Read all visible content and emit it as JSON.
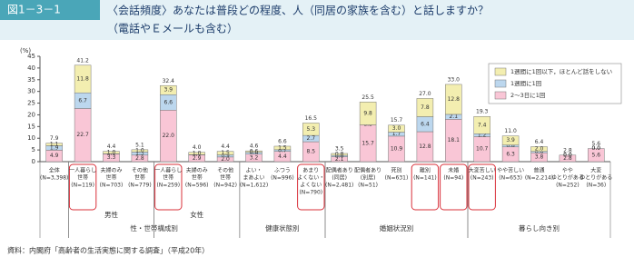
{
  "chart_data": {
    "type": "stacked-bar",
    "figure_label": "図1－3－1",
    "title": [
      "〈会話頻度〉あなたは普段どの程度、人（同居の家族を含む）と話しますか？",
      "（電話やＥメールも含む）"
    ],
    "y_unit": "(%)",
    "ylim": [
      0,
      45
    ],
    "yticks": [
      0,
      5,
      10,
      15,
      20,
      25,
      30,
      35,
      40,
      45
    ],
    "categories": [
      [
        "全体"
      ],
      [
        "一人暮らし",
        "世帯"
      ],
      [
        "夫婦のみ",
        "世帯"
      ],
      [
        "その他",
        "世帯"
      ],
      [
        "一人暮らし",
        "世帯"
      ],
      [
        "夫婦のみ",
        "世帯"
      ],
      [
        "その他",
        "世帯"
      ],
      [
        "よい・",
        "まあよい"
      ],
      [
        "ふつう"
      ],
      [
        "あまり",
        "よくない・",
        "よくない"
      ],
      [
        "配偶者あり",
        "(同居)"
      ],
      [
        "配偶者あり",
        "(別居)"
      ],
      [
        "死別"
      ],
      [
        "離別"
      ],
      [
        "未婚"
      ],
      [
        "大変苦しい"
      ],
      [
        "やや苦しい"
      ],
      [
        "普通"
      ],
      [
        "やや",
        "ゆとりがある"
      ],
      [
        "大変",
        "ゆとりがある"
      ]
    ],
    "n_labels": [
      "(N=3,398)",
      "(N=119)",
      "(N=703)",
      "(N=779)",
      "(N=259)",
      "(N=596)",
      "(N=942)",
      "(N=1,612)",
      "(N=996)",
      "(N=790)",
      "(N=2,481)",
      "(N=51)",
      "(N=631)",
      "(N=141)",
      "(N=94)",
      "(N=243)",
      "(N=653)",
      "(N=2,214)",
      "(N=252)",
      "(N=36)"
    ],
    "series": [
      {
        "name": "2～3日に1回",
        "color": "#f9c6d6",
        "values": [
          4.9,
          22.7,
          3.3,
          2.8,
          22.0,
          2.9,
          2.0,
          3.2,
          4.4,
          8.5,
          2.1,
          15.7,
          10.9,
          12.8,
          18.1,
          10.7,
          6.3,
          3.8,
          2.8,
          5.6
        ],
        "value_labels": [
          "4.9",
          "22.7",
          "3.3",
          "2.8",
          "22.0",
          "2.9",
          "2.0",
          "3.2",
          "4.4",
          "8.5",
          "2.1",
          "15.7",
          "10.9",
          "12.8",
          "18.1",
          "10.7",
          "6.3",
          "3.8",
          "2.8",
          "5.6"
        ]
      },
      {
        "name": "1週間に1回",
        "color": "#bcd7ee",
        "values": [
          1.9,
          6.7,
          0.1,
          1.3,
          6.6,
          0.1,
          0.9,
          0.8,
          0.7,
          2.7,
          0.6,
          0.0,
          1.7,
          6.4,
          2.1,
          1.2,
          0.8,
          0.6,
          0.0,
          0.0
        ],
        "value_labels": [
          "1.9",
          "6.7",
          "0.1",
          "1.3",
          "6.6",
          "0.1",
          "0.9",
          "0.8",
          "0.7",
          "2.7",
          "0.6",
          "0.0",
          "1.7",
          "6.4",
          "2.1",
          "1.2",
          "0.8",
          "0.6",
          "0.0",
          "0.0"
        ]
      },
      {
        "name": "1週間に1回以下，ほとんど話をしない",
        "color": "#f3eeb0",
        "values": [
          1.1,
          11.8,
          1.0,
          1.0,
          3.9,
          1.0,
          1.5,
          0.6,
          1.5,
          5.3,
          0.8,
          9.8,
          3.0,
          7.8,
          12.8,
          7.4,
          3.9,
          2.0,
          0.0,
          0.0
        ],
        "value_labels": [
          "1.1",
          "11.8",
          "1.0",
          "1.0",
          "3.9",
          "1.0",
          "1.5",
          "0.6",
          "1.5",
          "5.3",
          "0.8",
          "9.8",
          "3.0",
          "7.8",
          "12.8",
          "7.4",
          "3.9",
          "2.0",
          "0.0",
          "0.0"
        ]
      }
    ],
    "totals": [
      7.9,
      41.2,
      4.4,
      5.1,
      32.4,
      4.0,
      4.4,
      4.6,
      6.6,
      16.5,
      3.5,
      25.5,
      15.7,
      27.0,
      33.0,
      19.3,
      11.0,
      6.4,
      2.8,
      5.6
    ],
    "total_labels": [
      "7.9",
      "41.2",
      "4.4",
      "5.1",
      "32.4",
      "4.0",
      "4.4",
      "4.6",
      "6.6",
      "16.5",
      "3.5",
      "25.5",
      "15.7",
      "27.0",
      "33.0",
      "19.3",
      "11.0",
      "6.4",
      "2.8",
      "5.6"
    ],
    "highlight": [
      1,
      4,
      9,
      13,
      14,
      15
    ],
    "subgroups": [
      {
        "name": "男性",
        "first": 1,
        "last": 3
      },
      {
        "name": "女性",
        "first": 4,
        "last": 6
      }
    ],
    "groups": [
      {
        "name": "性・世帯構成別",
        "first": 1,
        "last": 6
      },
      {
        "name": "健康状態別",
        "first": 7,
        "last": 9
      },
      {
        "name": "婚姻状況別",
        "first": 10,
        "last": 14
      },
      {
        "name": "暮らし向き別",
        "first": 15,
        "last": 19
      }
    ],
    "source": "資料：内閣府「高齢者の生活実態に関する調査」（平成20年）"
  }
}
